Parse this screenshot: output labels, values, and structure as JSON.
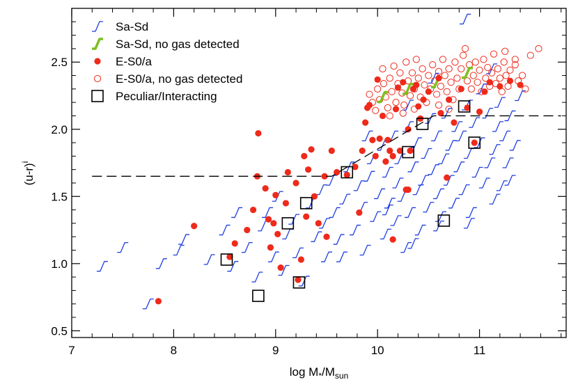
{
  "chart_data": {
    "type": "scatter",
    "xlabel": {
      "base": "log M",
      "sub1": "*",
      "mid": "/M",
      "sub2": "sun"
    },
    "ylabel": {
      "base": "(u-r)",
      "sup": "i"
    },
    "xlim": [
      7,
      11.85
    ],
    "ylim": [
      0.45,
      2.9
    ],
    "x_ticks": [
      7,
      8,
      9,
      10,
      11
    ],
    "y_ticks": [
      0.5,
      1.0,
      1.5,
      2.0,
      2.5
    ],
    "x_tick_labels": [
      "7",
      "8",
      "9",
      "10",
      "11"
    ],
    "y_tick_labels": [
      "0.5",
      "1.0",
      "1.5",
      "2.0",
      "2.5"
    ],
    "grid": false,
    "legend_position": "top-left",
    "legend": [
      {
        "label": "Sa-Sd",
        "marker": "spiral",
        "color": "#1f3fe0"
      },
      {
        "label": "Sa-Sd, no gas detected",
        "marker": "spiral-thick",
        "color": "#7fbf1f"
      },
      {
        "label": "E-S0/a",
        "marker": "filled-circle",
        "color": "#ee2a1b"
      },
      {
        "label": "E-S0/a, no gas detected",
        "marker": "open-circle",
        "color": "#ee2a1b"
      },
      {
        "label": "Peculiar/Interacting",
        "marker": "open-square",
        "color": "#000000"
      }
    ],
    "dividing_line": [
      [
        7.2,
        1.65
      ],
      [
        9.55,
        1.65
      ],
      [
        10.55,
        2.1
      ],
      [
        11.8,
        2.1
      ]
    ],
    "series": [
      {
        "name": "Sa-Sd",
        "marker": "spiral",
        "color": "#1f3fe0",
        "points": [
          [
            7.3,
            0.98
          ],
          [
            7.5,
            1.12
          ],
          [
            7.75,
            0.7
          ],
          [
            7.88,
            1.0
          ],
          [
            8.05,
            1.1
          ],
          [
            8.1,
            1.18
          ],
          [
            8.35,
            1.03
          ],
          [
            8.5,
            1.25
          ],
          [
            8.58,
            0.98
          ],
          [
            8.62,
            1.38
          ],
          [
            8.72,
            1.12
          ],
          [
            8.82,
            0.9
          ],
          [
            8.88,
            1.28
          ],
          [
            8.92,
            1.38
          ],
          [
            8.98,
            1.05
          ],
          [
            9.02,
            1.5
          ],
          [
            9.08,
            0.95
          ],
          [
            9.12,
            1.22
          ],
          [
            9.18,
            1.33
          ],
          [
            9.22,
            1.08
          ],
          [
            9.28,
            0.87
          ],
          [
            9.35,
            1.45
          ],
          [
            9.4,
            1.2
          ],
          [
            9.45,
            1.55
          ],
          [
            9.48,
            1.3
          ],
          [
            9.5,
            1.05
          ],
          [
            9.55,
            1.62
          ],
          [
            9.58,
            1.38
          ],
          [
            9.62,
            1.18
          ],
          [
            9.68,
            1.48
          ],
          [
            9.72,
            1.72
          ],
          [
            9.78,
            1.25
          ],
          [
            9.82,
            1.58
          ],
          [
            9.85,
            1.42
          ],
          [
            9.88,
            1.1
          ],
          [
            9.92,
            1.65
          ],
          [
            9.95,
            1.78
          ],
          [
            9.98,
            1.35
          ],
          [
            10.02,
            1.52
          ],
          [
            10.05,
            1.88
          ],
          [
            10.08,
            1.22
          ],
          [
            10.1,
            1.68
          ],
          [
            10.12,
            1.45
          ],
          [
            10.15,
            1.95
          ],
          [
            10.18,
            1.32
          ],
          [
            10.2,
            1.6
          ],
          [
            10.22,
            1.78
          ],
          [
            10.25,
            1.5
          ],
          [
            10.28,
            1.12
          ],
          [
            10.3,
            2.02
          ],
          [
            10.32,
            1.38
          ],
          [
            10.35,
            1.72
          ],
          [
            10.38,
            1.9
          ],
          [
            10.4,
            1.55
          ],
          [
            10.42,
            1.25
          ],
          [
            10.45,
            1.62
          ],
          [
            10.48,
            1.82
          ],
          [
            10.5,
            1.42
          ],
          [
            10.52,
            2.08
          ],
          [
            10.55,
            1.7
          ],
          [
            10.58,
            1.95
          ],
          [
            10.6,
            1.52
          ],
          [
            10.62,
            1.35
          ],
          [
            10.65,
            1.78
          ],
          [
            10.68,
            2.12
          ],
          [
            10.7,
            1.62
          ],
          [
            10.72,
            1.88
          ],
          [
            10.75,
            1.45
          ],
          [
            10.78,
            2.02
          ],
          [
            10.8,
            1.72
          ],
          [
            10.82,
            1.95
          ],
          [
            10.85,
            1.55
          ],
          [
            10.88,
            2.18
          ],
          [
            10.9,
            1.82
          ],
          [
            10.92,
            1.38
          ],
          [
            10.95,
            2.05
          ],
          [
            10.98,
            1.68
          ],
          [
            11.0,
            1.9
          ],
          [
            11.02,
            2.3
          ],
          [
            11.05,
            1.6
          ],
          [
            11.08,
            2.12
          ],
          [
            11.1,
            1.75
          ],
          [
            11.12,
            2.45
          ],
          [
            11.15,
            1.85
          ],
          [
            11.18,
            2.02
          ],
          [
            11.2,
            2.2
          ],
          [
            11.22,
            1.58
          ],
          [
            11.25,
            1.95
          ],
          [
            11.28,
            1.75
          ],
          [
            11.3,
            2.1
          ],
          [
            11.35,
            1.88
          ],
          [
            11.4,
            2.25
          ],
          [
            10.86,
            2.82
          ],
          [
            10.3,
            2.18
          ],
          [
            10.55,
            2.38
          ],
          [
            9.9,
            1.95
          ],
          [
            10.1,
            1.4
          ],
          [
            9.65,
            1.05
          ],
          [
            10.35,
            1.15
          ],
          [
            10.6,
            1.28
          ],
          [
            10.9,
            1.3
          ],
          [
            11.15,
            1.48
          ],
          [
            11.3,
            1.62
          ]
        ]
      },
      {
        "name": "Sa-Sd, no gas detected",
        "marker": "spiral-thick",
        "color": "#7fbf1f",
        "points": [
          [
            10.05,
            2.24
          ],
          [
            10.3,
            2.3
          ],
          [
            10.58,
            2.35
          ],
          [
            10.88,
            2.42
          ]
        ]
      },
      {
        "name": "E-S0/a",
        "marker": "filled-circle",
        "color": "#ee2a1b",
        "points": [
          [
            7.85,
            0.72
          ],
          [
            8.2,
            1.28
          ],
          [
            8.55,
            1.05
          ],
          [
            8.6,
            1.15
          ],
          [
            8.72,
            1.25
          ],
          [
            8.78,
            1.4
          ],
          [
            8.82,
            1.65
          ],
          [
            8.83,
            1.97
          ],
          [
            8.9,
            1.56
          ],
          [
            8.93,
            1.33
          ],
          [
            8.95,
            1.12
          ],
          [
            8.98,
            1.3
          ],
          [
            9.0,
            1.51
          ],
          [
            9.02,
            1.22
          ],
          [
            9.05,
            0.97
          ],
          [
            9.1,
            1.45
          ],
          [
            9.12,
            1.68
          ],
          [
            9.2,
            1.6
          ],
          [
            9.22,
            0.88
          ],
          [
            9.25,
            1.03
          ],
          [
            9.28,
            1.8
          ],
          [
            9.3,
            1.35
          ],
          [
            9.32,
            1.7
          ],
          [
            9.35,
            1.85
          ],
          [
            9.38,
            1.5
          ],
          [
            9.42,
            1.3
          ],
          [
            9.48,
            1.65
          ],
          [
            9.5,
            1.2
          ],
          [
            9.55,
            1.84
          ],
          [
            9.6,
            1.68
          ],
          [
            9.7,
            1.66
          ],
          [
            9.78,
            1.72
          ],
          [
            9.82,
            1.38
          ],
          [
            9.85,
            1.84
          ],
          [
            9.88,
            2.05
          ],
          [
            9.9,
            2.16
          ],
          [
            9.92,
            2.18
          ],
          [
            9.95,
            1.92
          ],
          [
            9.98,
            1.8
          ],
          [
            10.0,
            2.37
          ],
          [
            10.02,
            1.93
          ],
          [
            10.05,
            2.1
          ],
          [
            10.08,
            1.76
          ],
          [
            10.1,
            1.92
          ],
          [
            10.12,
            1.84
          ],
          [
            10.15,
            1.8
          ],
          [
            10.18,
            2.15
          ],
          [
            10.2,
            2.31
          ],
          [
            10.22,
            1.84
          ],
          [
            10.25,
            2.35
          ],
          [
            10.28,
            1.55
          ],
          [
            10.3,
            2.0
          ],
          [
            10.32,
            1.84
          ],
          [
            10.35,
            2.3
          ],
          [
            10.38,
            2.33
          ],
          [
            10.4,
            2.17
          ],
          [
            10.42,
            2.08
          ],
          [
            10.45,
            2.22
          ],
          [
            10.5,
            2.28
          ],
          [
            10.6,
            2.38
          ],
          [
            10.62,
            2.12
          ],
          [
            10.68,
            1.64
          ],
          [
            10.7,
            2.22
          ],
          [
            10.75,
            2.05
          ],
          [
            10.82,
            2.3
          ],
          [
            10.88,
            2.16
          ],
          [
            10.95,
            1.9
          ],
          [
            11.0,
            2.13
          ],
          [
            11.05,
            2.28
          ],
          [
            11.1,
            2.35
          ],
          [
            11.2,
            2.32
          ],
          [
            11.3,
            2.36
          ],
          [
            11.4,
            2.33
          ],
          [
            10.15,
            1.18
          ],
          [
            10.3,
            1.55
          ]
        ]
      },
      {
        "name": "E-S0/a, no gas detected",
        "marker": "open-circle",
        "color": "#ee2a1b",
        "points": [
          [
            9.92,
            2.26
          ],
          [
            9.95,
            2.2
          ],
          [
            9.98,
            2.14
          ],
          [
            10.0,
            2.3
          ],
          [
            10.02,
            2.22
          ],
          [
            10.05,
            2.45
          ],
          [
            10.06,
            2.34
          ],
          [
            10.08,
            2.24
          ],
          [
            10.1,
            2.16
          ],
          [
            10.12,
            2.38
          ],
          [
            10.14,
            2.28
          ],
          [
            10.16,
            2.47
          ],
          [
            10.18,
            2.2
          ],
          [
            10.2,
            2.34
          ],
          [
            10.22,
            2.42
          ],
          [
            10.24,
            2.27
          ],
          [
            10.26,
            2.18
          ],
          [
            10.28,
            2.5
          ],
          [
            10.3,
            2.36
          ],
          [
            10.32,
            2.25
          ],
          [
            10.34,
            2.42
          ],
          [
            10.36,
            2.3
          ],
          [
            10.38,
            2.52
          ],
          [
            10.4,
            2.38
          ],
          [
            10.42,
            2.24
          ],
          [
            10.44,
            2.45
          ],
          [
            10.46,
            2.33
          ],
          [
            10.48,
            2.2
          ],
          [
            10.5,
            2.4
          ],
          [
            10.52,
            2.3
          ],
          [
            10.54,
            2.48
          ],
          [
            10.56,
            2.36
          ],
          [
            10.58,
            2.26
          ],
          [
            10.6,
            2.43
          ],
          [
            10.62,
            2.32
          ],
          [
            10.64,
            2.52
          ],
          [
            10.66,
            2.4
          ],
          [
            10.68,
            2.28
          ],
          [
            10.7,
            2.45
          ],
          [
            10.72,
            2.35
          ],
          [
            10.74,
            2.22
          ],
          [
            10.76,
            2.5
          ],
          [
            10.78,
            2.38
          ],
          [
            10.8,
            2.3
          ],
          [
            10.82,
            2.45
          ],
          [
            10.84,
            2.55
          ],
          [
            10.86,
            2.6
          ],
          [
            10.88,
            2.36
          ],
          [
            10.9,
            2.48
          ],
          [
            10.92,
            2.3
          ],
          [
            10.94,
            2.4
          ],
          [
            10.96,
            2.5
          ],
          [
            10.98,
            2.35
          ],
          [
            11.0,
            2.44
          ],
          [
            11.02,
            2.28
          ],
          [
            11.04,
            2.52
          ],
          [
            11.06,
            2.38
          ],
          [
            11.08,
            2.46
          ],
          [
            11.1,
            2.32
          ],
          [
            11.12,
            2.42
          ],
          [
            11.14,
            2.56
          ],
          [
            11.16,
            2.34
          ],
          [
            11.18,
            2.45
          ],
          [
            11.2,
            2.38
          ],
          [
            11.22,
            2.28
          ],
          [
            11.24,
            2.5
          ],
          [
            11.26,
            2.4
          ],
          [
            11.28,
            2.32
          ],
          [
            11.3,
            2.44
          ],
          [
            11.35,
            2.48
          ],
          [
            11.38,
            2.36
          ],
          [
            11.42,
            2.4
          ],
          [
            11.45,
            2.3
          ],
          [
            11.5,
            2.55
          ],
          [
            11.58,
            2.6
          ],
          [
            11.25,
            2.58
          ],
          [
            11.35,
            2.52
          ],
          [
            10.6,
            2.18
          ],
          [
            10.7,
            2.15
          ],
          [
            10.36,
            2.15
          ],
          [
            10.25,
            2.12
          ],
          [
            10.12,
            2.1
          ]
        ]
      },
      {
        "name": "Peculiar/Interacting",
        "marker": "open-square",
        "color": "#000000",
        "points": [
          [
            8.52,
            1.03
          ],
          [
            8.83,
            0.76
          ],
          [
            9.12,
            1.3
          ],
          [
            9.23,
            0.86
          ],
          [
            9.3,
            1.45
          ],
          [
            9.7,
            1.68
          ],
          [
            10.3,
            1.83
          ],
          [
            10.44,
            2.04
          ],
          [
            10.65,
            1.32
          ],
          [
            10.85,
            2.17
          ],
          [
            10.95,
            1.9
          ]
        ]
      }
    ]
  }
}
